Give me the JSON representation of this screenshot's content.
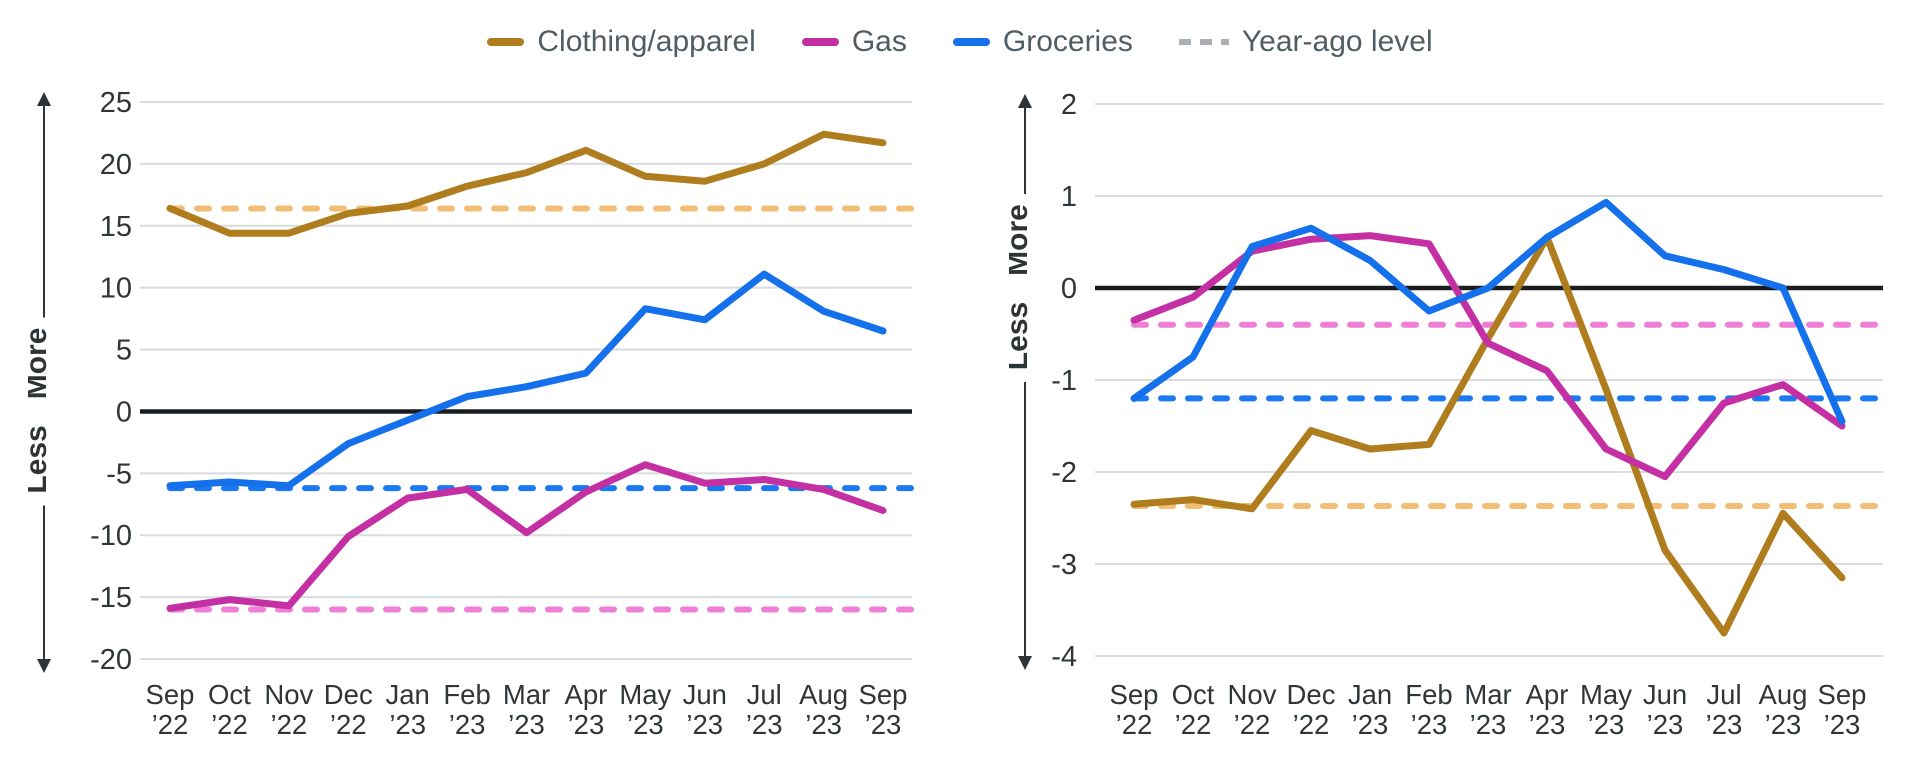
{
  "legend": {
    "items": [
      {
        "label": "Clothing/apparel",
        "color": "#b07d1e",
        "dashed": false
      },
      {
        "label": "Gas",
        "color": "#c42fa4",
        "dashed": false
      },
      {
        "label": "Groceries",
        "color": "#1470eb",
        "dashed": false
      },
      {
        "label": "Year-ago level",
        "color": "#a9afb4",
        "dashed": true
      }
    ]
  },
  "axis_arrow": {
    "more_label": "More",
    "less_label": "Less"
  },
  "colors": {
    "clothing": "#b07d1e",
    "gas": "#c42fa4",
    "groceries": "#1470eb",
    "clothing_year_ago": "#f2be75",
    "gas_year_ago": "#ee7ed6",
    "groceries_year_ago": "#1b79f2",
    "gridline": "#d9dbdd",
    "zero_line": "#1a1d1f",
    "tick_text": "#303538",
    "arrow_text": "#2e3336"
  },
  "chart_data": [
    {
      "type": "line",
      "position": "left",
      "ylim": [
        -20,
        25
      ],
      "yticks": [
        25,
        20,
        15,
        10,
        5,
        0,
        -5,
        -10,
        -15,
        -20
      ],
      "grid": true,
      "categories_line1": [
        "Sep",
        "Oct",
        "Nov",
        "Dec",
        "Jan",
        "Feb",
        "Mar",
        "Apr",
        "May",
        "Jun",
        "Jul",
        "Aug",
        "Sep"
      ],
      "categories_line2": [
        "’22",
        "’22",
        "’22",
        "’22",
        "’23",
        "’23",
        "’23",
        "’23",
        "’23",
        "’23",
        "’23",
        "’23",
        "’23"
      ],
      "series": [
        {
          "name": "Clothing/apparel",
          "color_key": "clothing",
          "dash_color_key": "clothing_year_ago",
          "values": [
            16.4,
            14.4,
            14.4,
            16.0,
            16.6,
            18.2,
            19.3,
            21.1,
            19.0,
            18.6,
            20.0,
            22.4,
            21.7
          ],
          "year_ago_level": 16.4
        },
        {
          "name": "Gas",
          "color_key": "gas",
          "dash_color_key": "gas_year_ago",
          "values": [
            -15.9,
            -15.2,
            -15.7,
            -10.1,
            -7.0,
            -6.3,
            -9.8,
            -6.5,
            -4.3,
            -5.8,
            -5.5,
            -6.3,
            -8.0
          ],
          "year_ago_level": -16.0
        },
        {
          "name": "Groceries",
          "color_key": "groceries",
          "dash_color_key": "groceries_year_ago",
          "values": [
            -6.0,
            -5.7,
            -6.0,
            -2.6,
            -0.7,
            1.2,
            2.0,
            3.1,
            8.3,
            7.4,
            11.1,
            8.1,
            6.5
          ],
          "year_ago_level": -6.2
        }
      ]
    },
    {
      "type": "line",
      "position": "right",
      "ylim": [
        -4,
        2
      ],
      "yticks": [
        2,
        1,
        0,
        -1,
        -2,
        -3,
        -4
      ],
      "grid": true,
      "categories_line1": [
        "Sep",
        "Oct",
        "Nov",
        "Dec",
        "Jan",
        "Feb",
        "Mar",
        "Apr",
        "May",
        "Jun",
        "Jul",
        "Aug",
        "Sep"
      ],
      "categories_line2": [
        "’22",
        "’22",
        "’22",
        "’22",
        "’23",
        "’23",
        "’23",
        "’23",
        "’23",
        "’23",
        "’23",
        "’23",
        "’23"
      ],
      "series": [
        {
          "name": "Clothing/apparel",
          "color_key": "clothing",
          "dash_color_key": "clothing_year_ago",
          "values": [
            -2.35,
            -2.3,
            -2.4,
            -1.55,
            -1.75,
            -1.7,
            -0.55,
            0.55,
            -1.1,
            -2.85,
            -3.75,
            -2.45,
            -3.15
          ],
          "year_ago_level": -2.37
        },
        {
          "name": "Gas",
          "color_key": "gas",
          "dash_color_key": "gas_year_ago",
          "values": [
            -0.35,
            -0.1,
            0.4,
            0.53,
            0.57,
            0.48,
            -0.6,
            -0.9,
            -1.75,
            -2.05,
            -1.25,
            -1.05,
            -1.5
          ],
          "year_ago_level": -0.4
        },
        {
          "name": "Groceries",
          "color_key": "groceries",
          "dash_color_key": "groceries_year_ago",
          "values": [
            -1.2,
            -0.75,
            0.45,
            0.65,
            0.3,
            -0.25,
            0.0,
            0.55,
            0.93,
            0.35,
            0.2,
            0.0,
            -1.45
          ],
          "year_ago_level": -1.2
        }
      ]
    }
  ]
}
